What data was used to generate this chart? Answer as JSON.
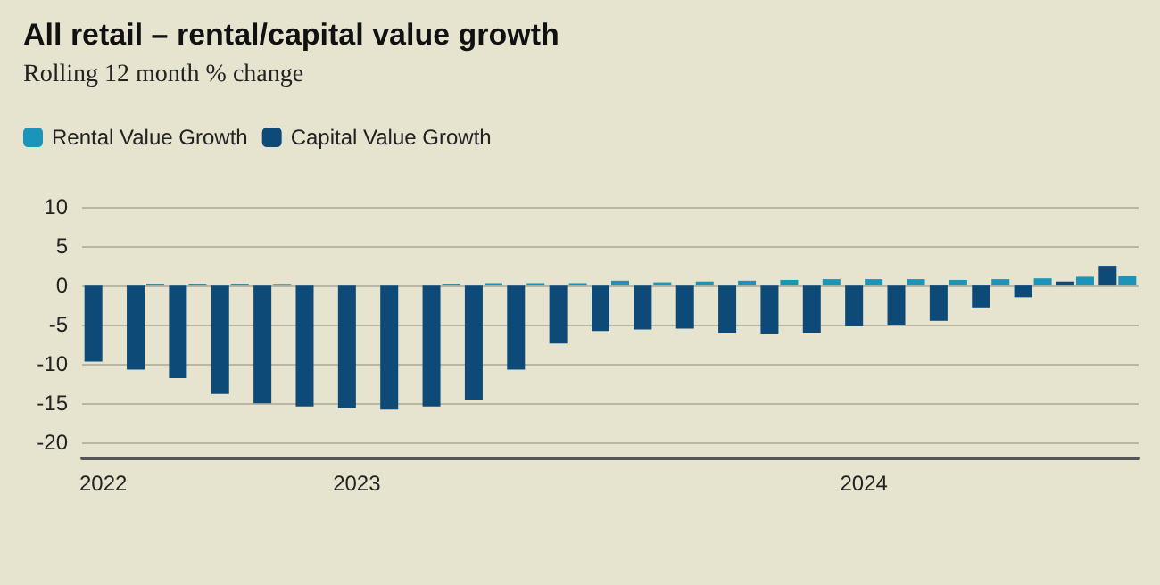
{
  "chart_data": {
    "type": "bar",
    "title": "All retail – rental/capital value growth",
    "subtitle": "Rolling 12 month % change",
    "categories": [
      "2022",
      null,
      null,
      null,
      null,
      null,
      "2023",
      null,
      null,
      null,
      null,
      null,
      null,
      null,
      null,
      null,
      null,
      null,
      "2024",
      null,
      null,
      null,
      null,
      null,
      null
    ],
    "series": [
      {
        "name": "Capital Value Growth",
        "color": "#0d4a78",
        "values": [
          -9.7,
          -10.7,
          -11.8,
          -13.8,
          -15,
          -15.4,
          -15.6,
          -15.8,
          -15.4,
          -14.5,
          -10.7,
          -7.4,
          -5.8,
          -5.6,
          -5.5,
          -6,
          -6.1,
          -6,
          -5.2,
          -5.1,
          -4.5,
          -2.8,
          -1.5,
          0.5,
          2.5
        ]
      },
      {
        "name": "Rental Value Growth",
        "color": "#1a94b8",
        "values": [
          0,
          0.2,
          0.2,
          0.2,
          0.1,
          0,
          0,
          0,
          0.2,
          0.3,
          0.3,
          0.3,
          0.6,
          0.4,
          0.5,
          0.6,
          0.7,
          0.8,
          0.8,
          0.8,
          0.7,
          0.8,
          0.9,
          1.1,
          1.2
        ]
      }
    ],
    "ylim": [
      -22,
      10
    ],
    "yticks": [
      -20,
      -15,
      -10,
      -5,
      0,
      5,
      10
    ],
    "grid": "y",
    "legend": "top left"
  }
}
